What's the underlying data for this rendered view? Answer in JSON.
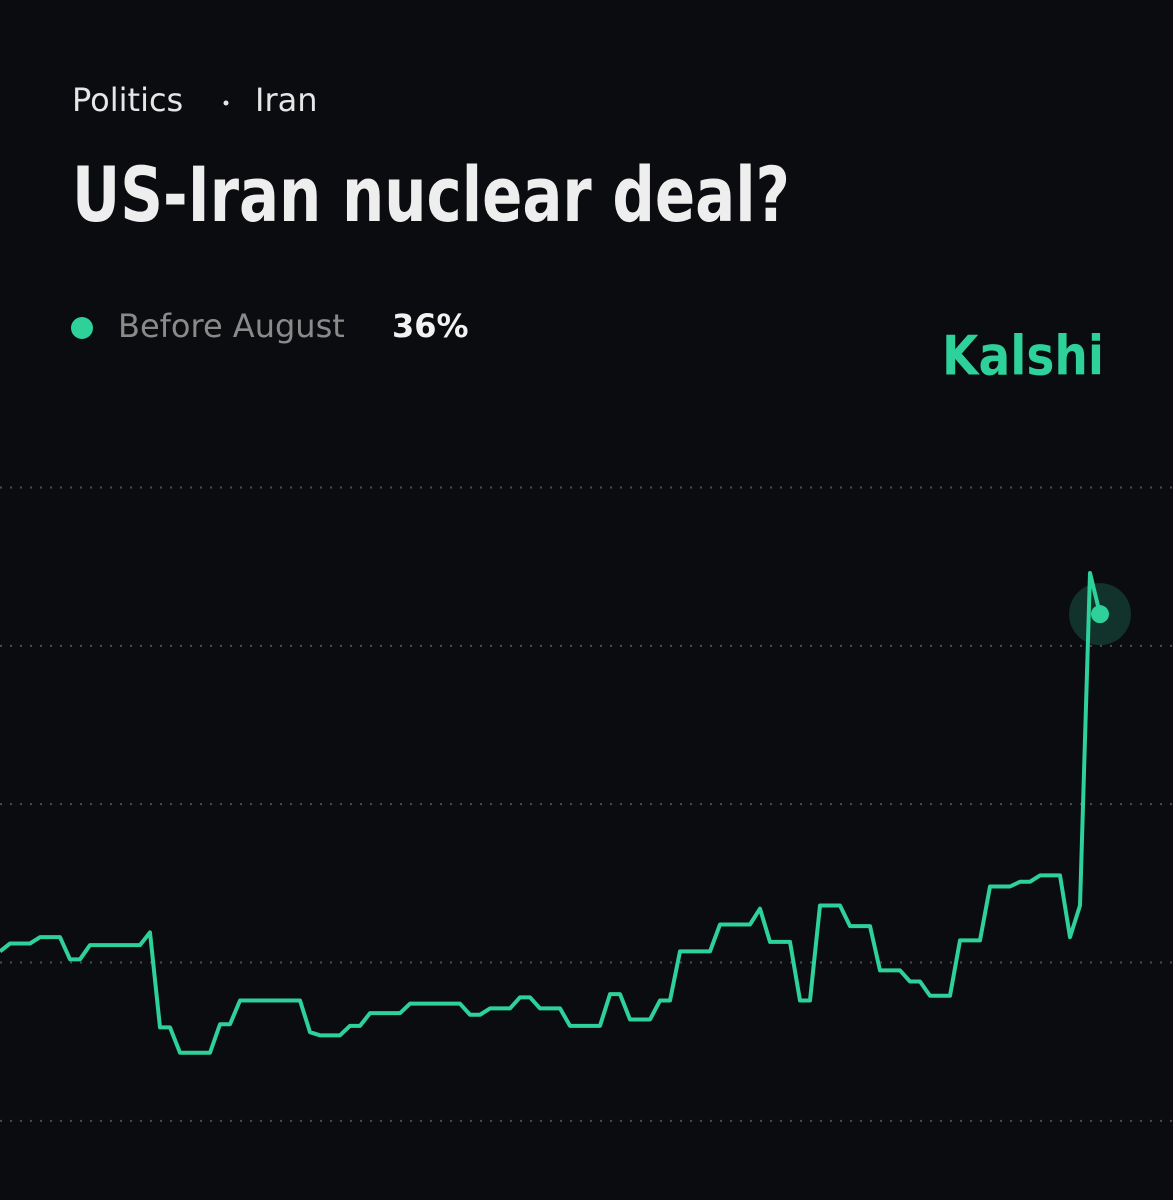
{
  "category": "Politics",
  "subcategory": "Iran",
  "brand": "Kalshi",
  "chart_data": {
    "type": "line",
    "title": "US-Iran nuclear deal?",
    "ylim": [
      -1,
      47
    ],
    "yticks": [
      4,
      14,
      24,
      34,
      44
    ],
    "grid": true,
    "series": [
      {
        "name": "Before August",
        "color": "#2ed199",
        "current": {
          "value": 36,
          "label": "36%"
        },
        "values": [
          14.7,
          15.2,
          15.2,
          15.2,
          15.6,
          15.6,
          15.6,
          14.2,
          14.2,
          15.1,
          15.1,
          15.1,
          15.1,
          15.1,
          15.1,
          15.9,
          9.9,
          9.9,
          8.3,
          8.3,
          8.3,
          8.3,
          10.1,
          10.1,
          11.6,
          11.6,
          11.6,
          11.6,
          11.6,
          11.6,
          11.6,
          9.6,
          9.4,
          9.4,
          9.4,
          10.0,
          10.0,
          10.8,
          10.8,
          10.8,
          10.8,
          11.4,
          11.4,
          11.4,
          11.4,
          11.4,
          11.4,
          10.7,
          10.7,
          11.1,
          11.1,
          11.1,
          11.8,
          11.8,
          11.1,
          11.1,
          11.1,
          10.0,
          10.0,
          10.0,
          10.0,
          12.0,
          12.0,
          10.4,
          10.4,
          10.4,
          11.6,
          11.6,
          14.7,
          14.7,
          14.7,
          14.7,
          16.4,
          16.4,
          16.4,
          16.4,
          17.4,
          15.3,
          15.3,
          15.3,
          11.6,
          11.6,
          17.6,
          17.6,
          17.6,
          16.3,
          16.3,
          16.3,
          13.5,
          13.5,
          13.5,
          12.8,
          12.8,
          11.9,
          11.9,
          11.9,
          15.4,
          15.4,
          15.4,
          18.8,
          18.8,
          18.8,
          19.1,
          19.1,
          19.5,
          19.5,
          19.5,
          15.6,
          17.6,
          38.6,
          36
        ]
      }
    ]
  }
}
